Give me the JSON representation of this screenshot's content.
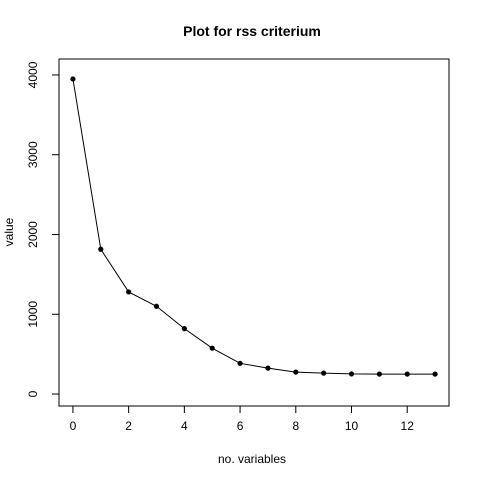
{
  "chart_data": {
    "type": "line",
    "title": "Plot for rss criterium",
    "xlabel": "no. variables",
    "ylabel": "value",
    "x": [
      0,
      1,
      2,
      3,
      4,
      5,
      6,
      7,
      8,
      9,
      10,
      11,
      12,
      13
    ],
    "y": [
      3950,
      1815,
      1280,
      1100,
      820,
      575,
      385,
      325,
      275,
      262,
      252,
      250,
      250,
      250
    ],
    "xlim": [
      -0.5,
      13.5
    ],
    "ylim": [
      -150,
      4200
    ],
    "x_ticks": [
      0,
      2,
      4,
      6,
      8,
      10,
      12
    ],
    "y_ticks": [
      0,
      1000,
      2000,
      3000,
      4000
    ],
    "x_tick_labels": [
      "0",
      "2",
      "4",
      "6",
      "8",
      "10",
      "12"
    ],
    "y_tick_labels": [
      "0",
      "1000",
      "2000",
      "3000",
      "4000"
    ],
    "grid": false,
    "marker": "filled-circle",
    "line_color": "#000000",
    "point_color": "#000000"
  }
}
